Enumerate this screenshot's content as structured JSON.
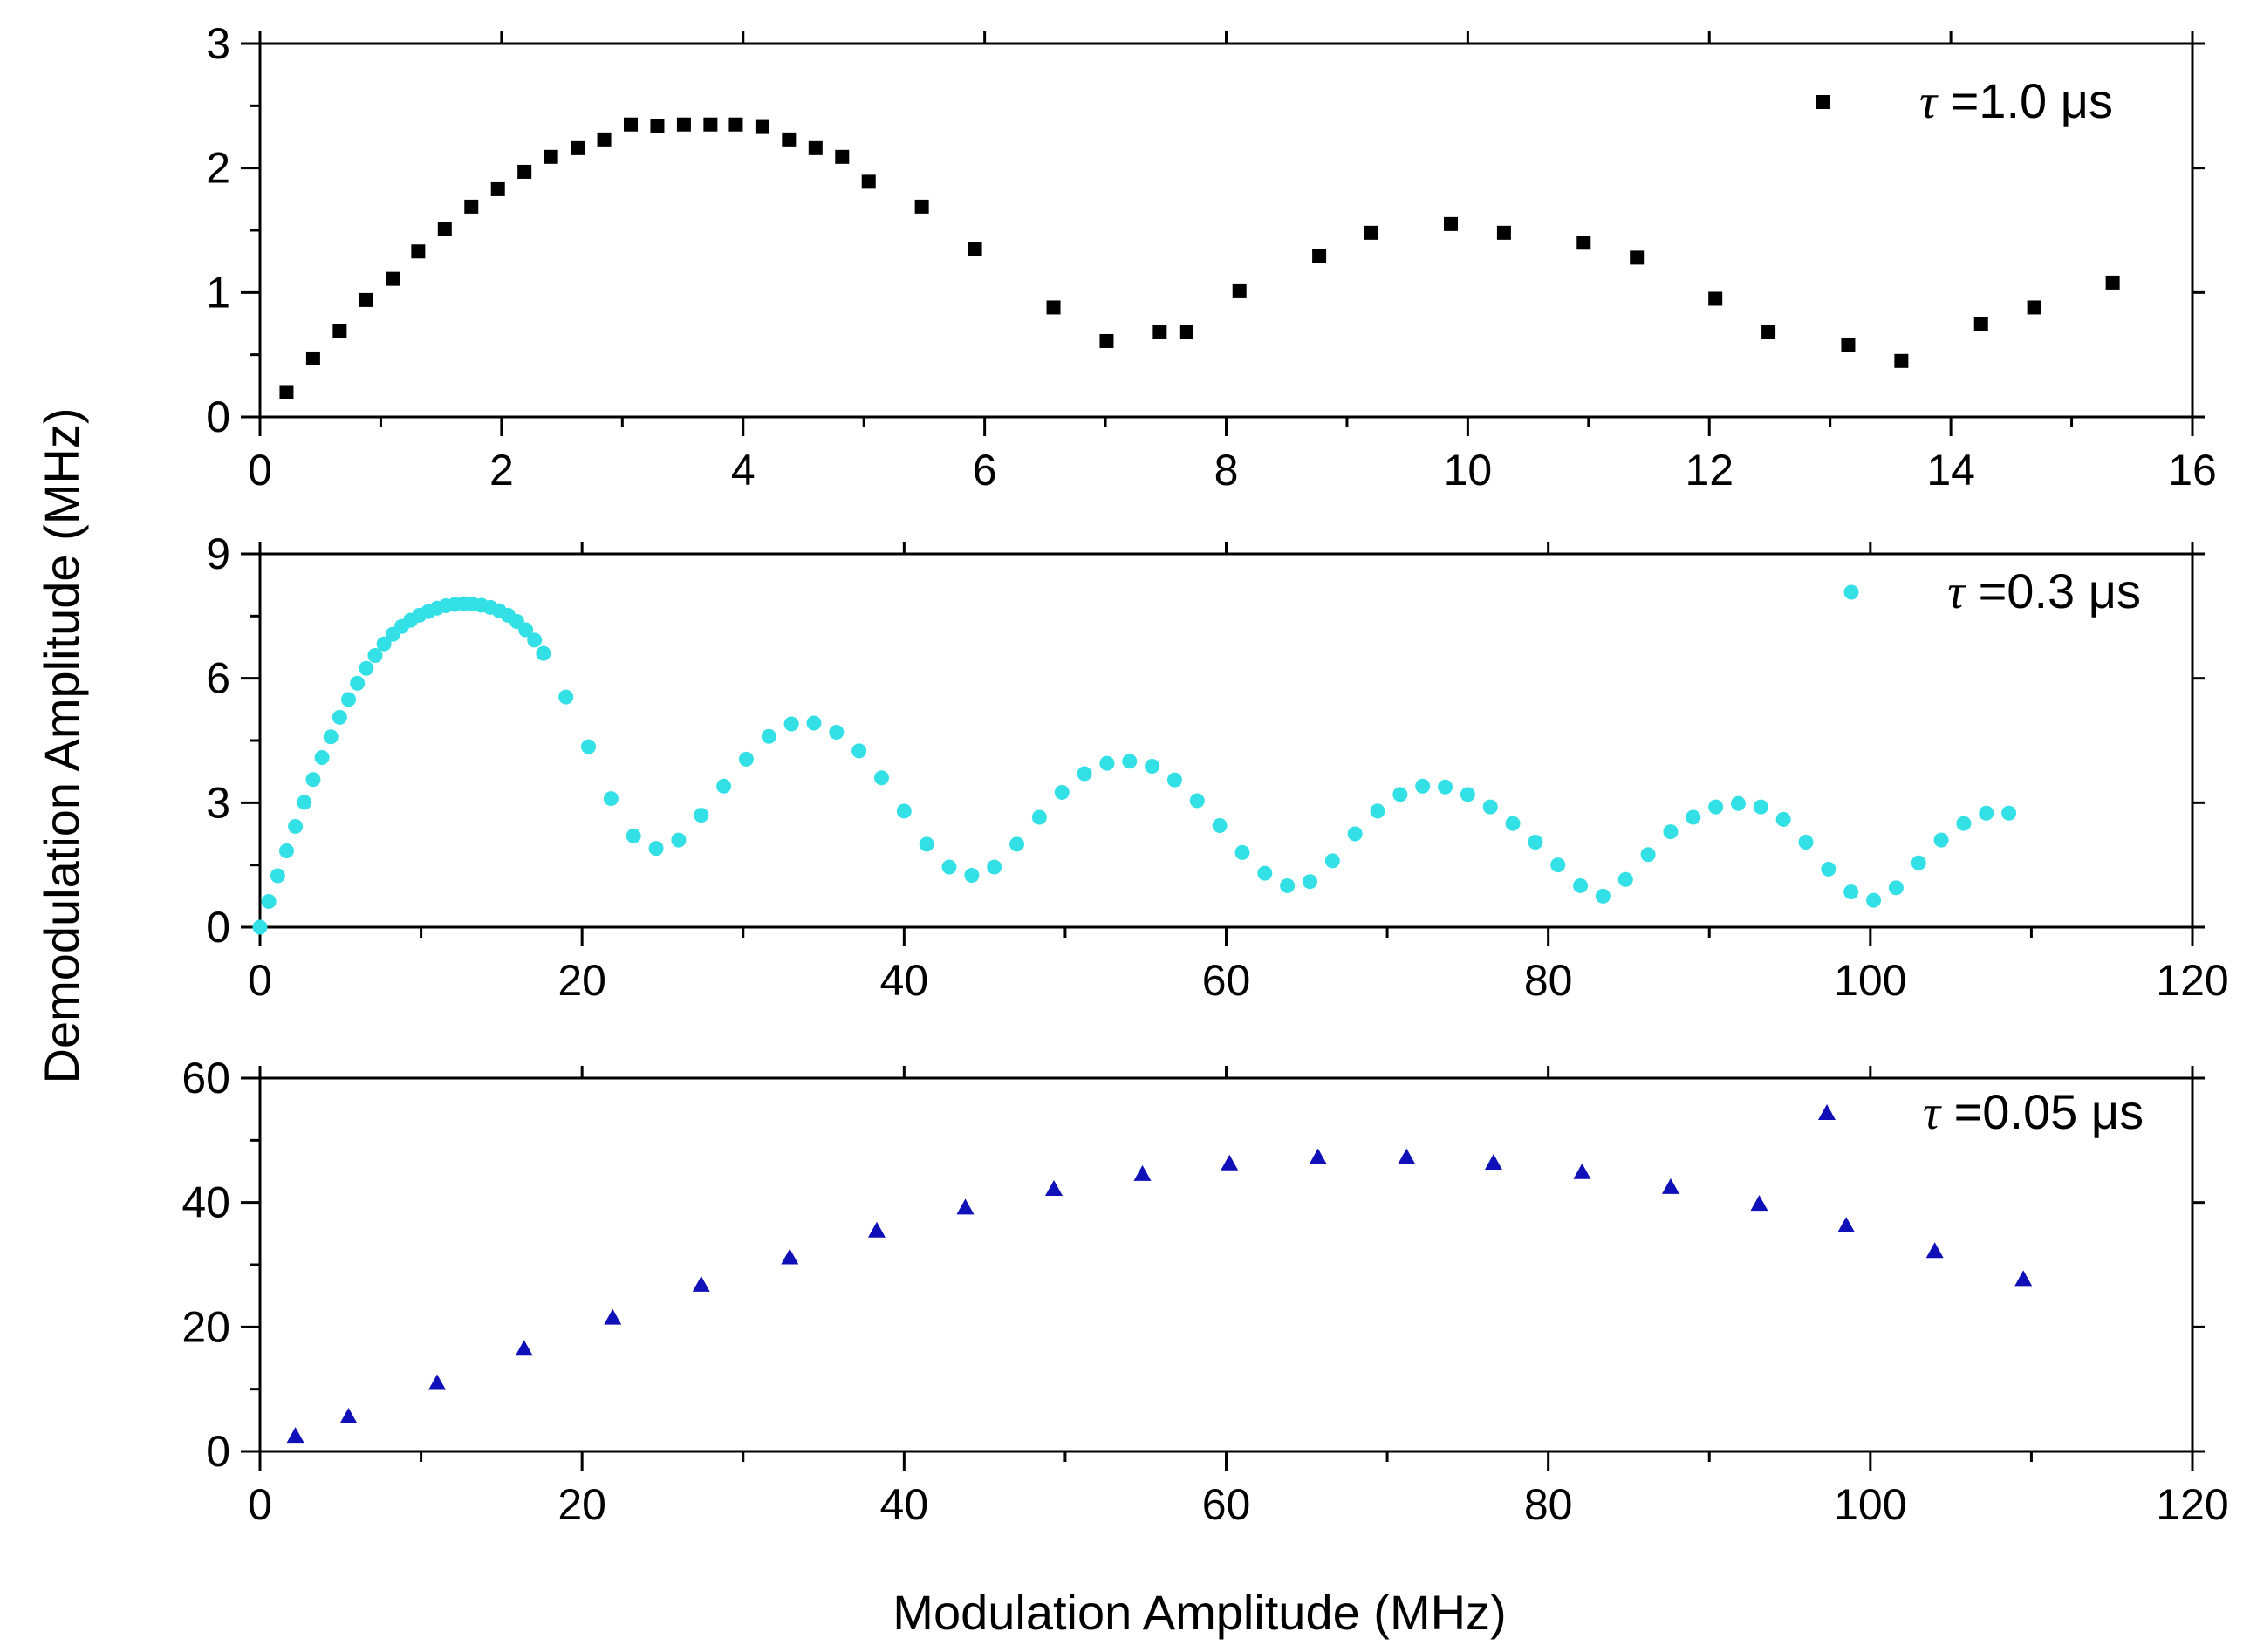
{
  "figure": {
    "ylabel": "Demodulation Amplitude (MHz)",
    "xlabel": "Modulation Amplitude (MHz)"
  },
  "chart_data": [
    {
      "type": "scatter",
      "panel": "top",
      "xlim": [
        0,
        16
      ],
      "ylim": [
        0,
        3
      ],
      "xticks": [
        0,
        2,
        4,
        6,
        8,
        10,
        12,
        14,
        16
      ],
      "yticks": [
        0,
        1,
        2,
        3
      ],
      "grid": false,
      "legend_position": "top-right",
      "series": [
        {
          "name": "τ =1.0 μs",
          "tau_symbol": "τ",
          "label_rest": " =1.0 μs",
          "marker": "square",
          "color": "#000000",
          "x": [
            0.22,
            0.44,
            0.66,
            0.88,
            1.1,
            1.31,
            1.53,
            1.75,
            1.97,
            2.19,
            2.41,
            2.63,
            2.85,
            3.07,
            3.29,
            3.51,
            3.73,
            3.94,
            4.16,
            4.38,
            4.6,
            4.82,
            5.04,
            5.48,
            5.92,
            6.57,
            7.01,
            7.45,
            7.67,
            8.11,
            8.77,
            9.2,
            9.86,
            10.3,
            10.96,
            11.4,
            12.05,
            12.49,
            13.15,
            13.59,
            14.25,
            14.69,
            15.34
          ],
          "y": [
            0.2,
            0.47,
            0.69,
            0.94,
            1.11,
            1.33,
            1.51,
            1.69,
            1.83,
            1.97,
            2.09,
            2.16,
            2.23,
            2.35,
            2.34,
            2.35,
            2.35,
            2.35,
            2.33,
            2.23,
            2.16,
            2.09,
            1.89,
            1.69,
            1.35,
            0.88,
            0.61,
            0.68,
            0.68,
            1.01,
            1.29,
            1.48,
            1.55,
            1.48,
            1.4,
            1.28,
            0.95,
            0.68,
            0.58,
            0.45,
            0.75,
            0.88,
            1.08
          ]
        }
      ]
    },
    {
      "type": "scatter",
      "panel": "middle",
      "xlim": [
        0,
        120
      ],
      "ylim": [
        0,
        9
      ],
      "xticks": [
        0,
        20,
        40,
        60,
        80,
        100,
        120
      ],
      "yticks": [
        0,
        3,
        6,
        9
      ],
      "grid": false,
      "legend_position": "top-right",
      "series": [
        {
          "name": "τ =0.3 μs",
          "tau_symbol": "τ",
          "label_rest": " =0.3 μs",
          "marker": "circle",
          "color": "#33e0e6",
          "x": [
            0.0,
            0.55,
            1.1,
            1.65,
            2.2,
            2.75,
            3.3,
            3.85,
            4.4,
            4.95,
            5.5,
            6.05,
            6.6,
            7.15,
            7.7,
            8.25,
            8.8,
            9.35,
            9.9,
            10.45,
            11.0,
            11.55,
            12.1,
            12.65,
            13.2,
            13.75,
            14.3,
            14.85,
            15.4,
            15.95,
            16.5,
            17.05,
            17.6,
            19.0,
            20.4,
            21.8,
            23.2,
            24.6,
            26.0,
            27.4,
            28.8,
            30.2,
            31.6,
            33.0,
            34.4,
            35.8,
            37.2,
            38.6,
            40.0,
            41.4,
            42.8,
            44.2,
            45.6,
            47.0,
            48.4,
            49.8,
            51.2,
            52.6,
            54.0,
            55.4,
            56.8,
            58.2,
            59.6,
            61.0,
            62.4,
            63.8,
            65.2,
            66.6,
            68.0,
            69.4,
            70.8,
            72.2,
            73.6,
            75.0,
            76.4,
            77.8,
            79.2,
            80.6,
            82.0,
            83.4,
            84.8,
            86.2,
            87.6,
            89.0,
            90.4,
            91.8,
            93.2,
            94.6,
            96.0,
            97.4,
            98.8,
            100.2,
            101.6,
            103.0,
            104.4,
            105.8,
            107.2,
            108.6
          ],
          "y": [
            0.0,
            0.62,
            1.24,
            1.84,
            2.43,
            3.01,
            3.56,
            4.09,
            4.59,
            5.06,
            5.49,
            5.88,
            6.24,
            6.55,
            6.83,
            7.06,
            7.25,
            7.4,
            7.52,
            7.61,
            7.69,
            7.75,
            7.78,
            7.8,
            7.79,
            7.76,
            7.71,
            7.63,
            7.52,
            7.37,
            7.17,
            6.92,
            6.6,
            5.55,
            4.35,
            3.1,
            2.2,
            1.9,
            2.1,
            2.7,
            3.4,
            4.05,
            4.6,
            4.9,
            4.92,
            4.7,
            4.25,
            3.6,
            2.8,
            2.0,
            1.45,
            1.25,
            1.45,
            2.0,
            2.65,
            3.25,
            3.7,
            3.95,
            4.0,
            3.88,
            3.55,
            3.05,
            2.45,
            1.8,
            1.3,
            1.0,
            1.1,
            1.6,
            2.25,
            2.8,
            3.2,
            3.4,
            3.38,
            3.2,
            2.9,
            2.5,
            2.05,
            1.5,
            1.0,
            0.75,
            1.15,
            1.75,
            2.3,
            2.65,
            2.9,
            2.98,
            2.9,
            2.6,
            2.05,
            1.4,
            0.85,
            0.65,
            0.95,
            1.55,
            2.1,
            2.5,
            2.75,
            2.75
          ]
        }
      ]
    },
    {
      "type": "scatter",
      "panel": "bottom",
      "xlim": [
        0,
        120
      ],
      "ylim": [
        0,
        60
      ],
      "xticks": [
        0,
        20,
        40,
        60,
        80,
        100,
        120
      ],
      "yticks": [
        0,
        20,
        40,
        60
      ],
      "grid": false,
      "legend_position": "top-right",
      "series": [
        {
          "name": "τ =0.05 μs",
          "tau_symbol": "τ",
          "label_rest": " =0.05 μs",
          "marker": "triangle",
          "color": "#1010b8",
          "x": [
            2.2,
            5.5,
            11.0,
            16.4,
            21.9,
            27.4,
            32.9,
            38.3,
            43.8,
            49.3,
            54.8,
            60.2,
            65.7,
            71.2,
            76.6,
            82.1,
            87.6,
            93.1,
            98.5,
            104.0,
            109.5
          ],
          "y": [
            2.5,
            5.6,
            11.0,
            16.5,
            21.5,
            26.8,
            31.2,
            35.5,
            39.2,
            42.2,
            44.6,
            46.3,
            47.3,
            47.3,
            46.4,
            44.9,
            42.5,
            39.8,
            36.3,
            32.2,
            27.7
          ]
        }
      ]
    }
  ]
}
